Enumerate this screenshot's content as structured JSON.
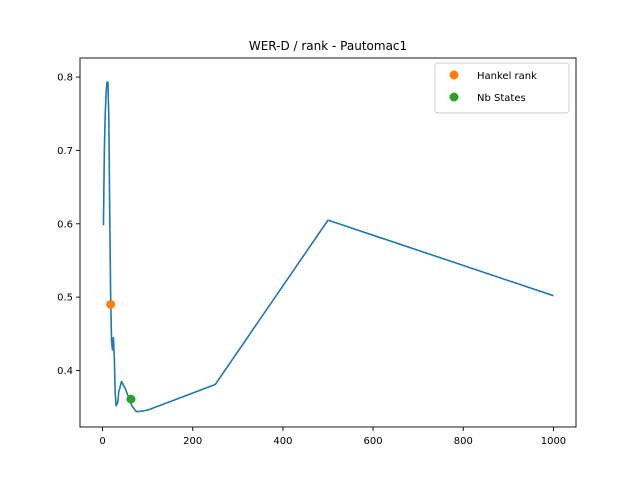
{
  "chart_data": {
    "type": "line",
    "title": "WER-D / rank - Pautomac1",
    "xlabel": "",
    "ylabel": "",
    "xlim": [
      -50,
      1050
    ],
    "ylim": [
      0.323,
      0.826
    ],
    "xticks": [
      0,
      200,
      400,
      600,
      800,
      1000
    ],
    "yticks": [
      0.4,
      0.5,
      0.6,
      0.7,
      0.8
    ],
    "grid": false,
    "legend_position": "top-right",
    "series": [
      {
        "color": "#1f77b4",
        "x": [
          2,
          4,
          6,
          8,
          10,
          12,
          14,
          16,
          18,
          20,
          22,
          24,
          26,
          28,
          30,
          32,
          34,
          36,
          38,
          40,
          42,
          44,
          46,
          48,
          50,
          55,
          60,
          65,
          70,
          75,
          80,
          100,
          250,
          500,
          1000
        ],
        "y": [
          0.598,
          0.7,
          0.75,
          0.78,
          0.793,
          0.793,
          0.74,
          0.61,
          0.5,
          0.44,
          0.428,
          0.445,
          0.42,
          0.37,
          0.352,
          0.354,
          0.358,
          0.372,
          0.375,
          0.38,
          0.385,
          0.383,
          0.38,
          0.378,
          0.376,
          0.368,
          0.36,
          0.352,
          0.348,
          0.344,
          0.344,
          0.346,
          0.381,
          0.605,
          0.502
        ]
      },
      {
        "name": "Hankel rank",
        "color": "#ff7f0e",
        "marker": true,
        "x": [
          18
        ],
        "y": [
          0.49
        ]
      },
      {
        "name": "Nb States",
        "color": "#2ca02c",
        "marker": true,
        "x": [
          63
        ],
        "y": [
          0.361
        ]
      }
    ],
    "legend": [
      "Hankel rank",
      "Nb States"
    ]
  }
}
